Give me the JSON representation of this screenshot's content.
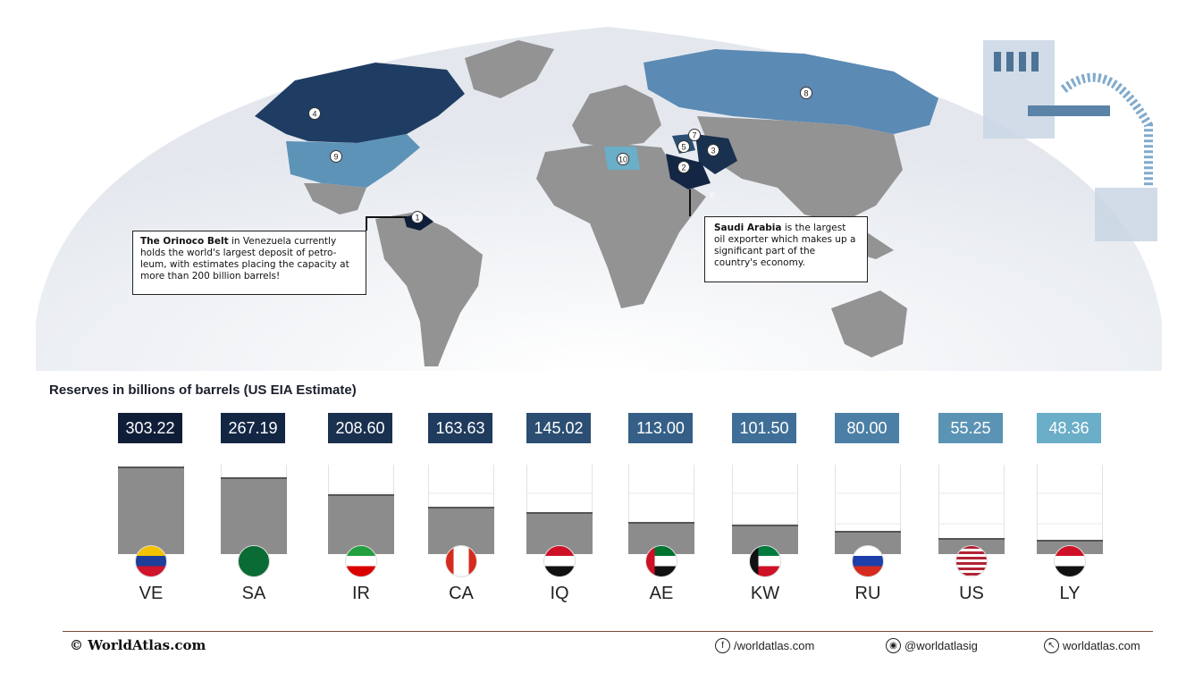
{
  "map": {
    "callout_venezuela": {
      "bold": "The Orinoco Belt",
      "text": " in Venezuela currently holds the world's largest deposit of petro-leum, with estimates placing the capacity at more than 200 billion barrels!"
    },
    "callout_saudi": {
      "bold": "Saudi Arabia",
      "text": " is the largest oil exporter which makes up a significant part of the country's economy."
    },
    "markers": [
      "1",
      "2",
      "3",
      "4",
      "5",
      "6",
      "7",
      "8",
      "9",
      "10"
    ]
  },
  "chart_data": {
    "type": "bar",
    "title": "Reserves in billions of barrels  (US EIA Estimate)",
    "categories": [
      "VE",
      "SA",
      "IR",
      "CA",
      "IQ",
      "AE",
      "KW",
      "RU",
      "US",
      "LY"
    ],
    "value_labels": [
      "303.22",
      "267.19",
      "208.60",
      "163.63",
      "145.02",
      "113.00",
      "101.50",
      "80.00",
      "55.25",
      "48.36"
    ],
    "values": [
      303.22,
      267.19,
      208.6,
      163.63,
      145.02,
      113.0,
      101.5,
      80.0,
      55.25,
      48.36
    ],
    "ylim": [
      0,
      310
    ],
    "label_colors": [
      "#0f1e38",
      "#132644",
      "#19304f",
      "#1f3b5e",
      "#2b4e72",
      "#355f86",
      "#3f6f97",
      "#4b7fa5",
      "#5b93b4",
      "#6aaec7"
    ],
    "bar_color": "#8c8c8c"
  },
  "footer": {
    "brand": "© WorldAtlas.com",
    "facebook": "/worldatlas.com",
    "instagram": "@worldatlasig",
    "website": "worldatlas.com"
  }
}
